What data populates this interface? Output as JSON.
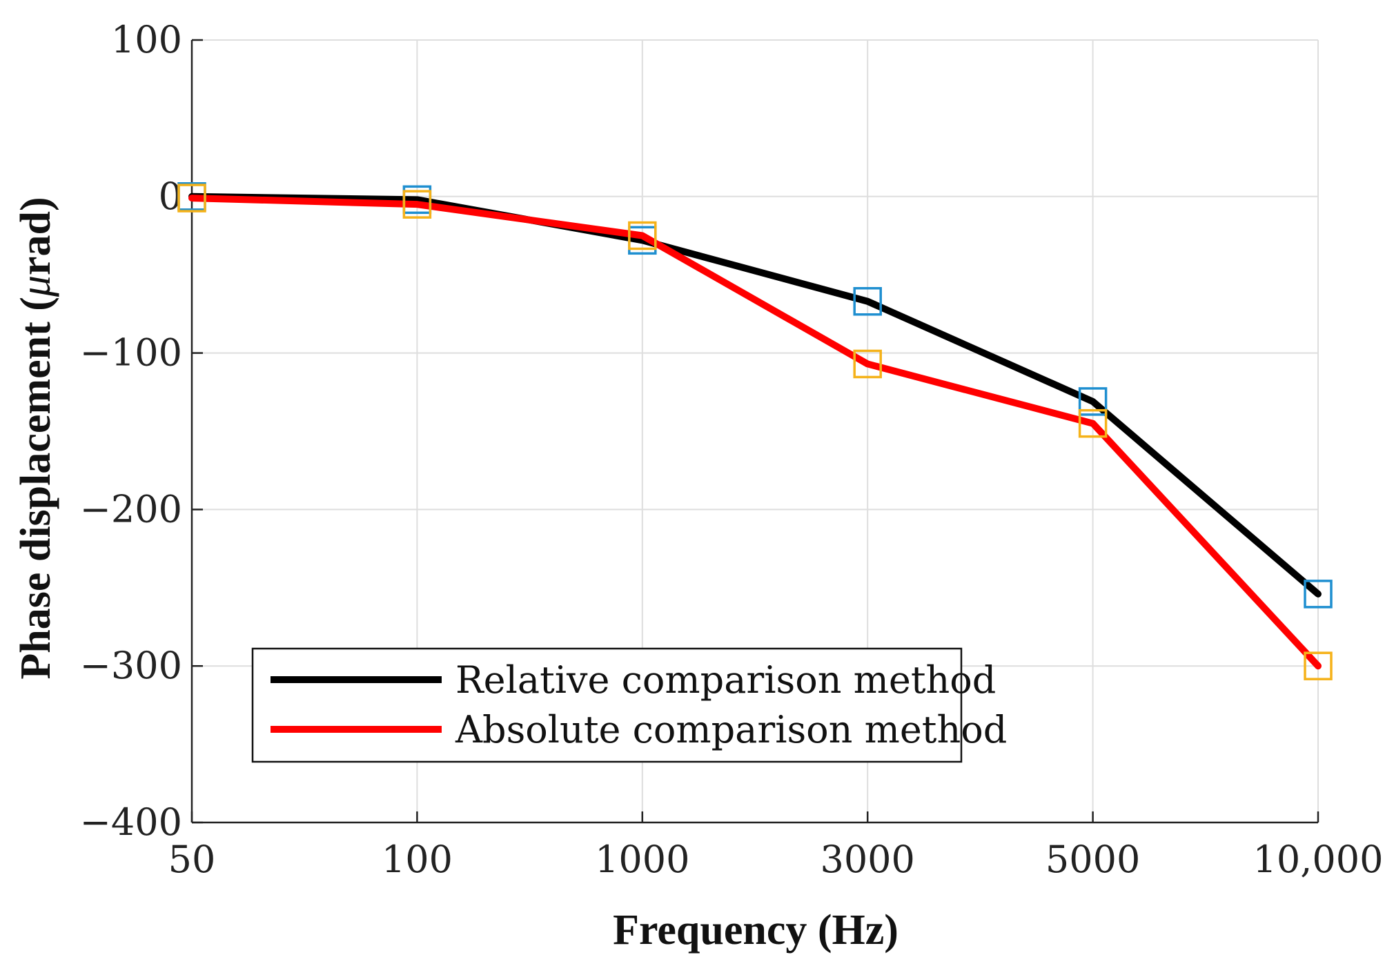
{
  "chart_data": {
    "type": "line",
    "title": "",
    "xlabel": "Frequency (Hz)",
    "ylabel_prefix": "Phase displacement (",
    "ylabel_mu": "μ",
    "ylabel_suffix": "rad)",
    "categories": [
      "50",
      "100",
      "1000",
      "3000",
      "5000",
      "10,000"
    ],
    "ylim": [
      -400,
      100
    ],
    "yticks": [
      100,
      0,
      -100,
      -200,
      -300,
      -400
    ],
    "ytick_labels": [
      "100",
      "0",
      "−100",
      "−200",
      "−300",
      "−400"
    ],
    "grid": true,
    "legend_position": "bottom-left",
    "series": [
      {
        "name": "Relative comparison method",
        "color": "#000000",
        "marker_color": "#1f8fd0",
        "values": [
          0,
          -2,
          -28,
          -67,
          -131,
          -254
        ]
      },
      {
        "name": "Absolute comparison method",
        "color": "#ff0000",
        "marker_color": "#f5b21a",
        "values": [
          -1,
          -5,
          -25,
          -107,
          -145,
          -300
        ]
      }
    ]
  }
}
